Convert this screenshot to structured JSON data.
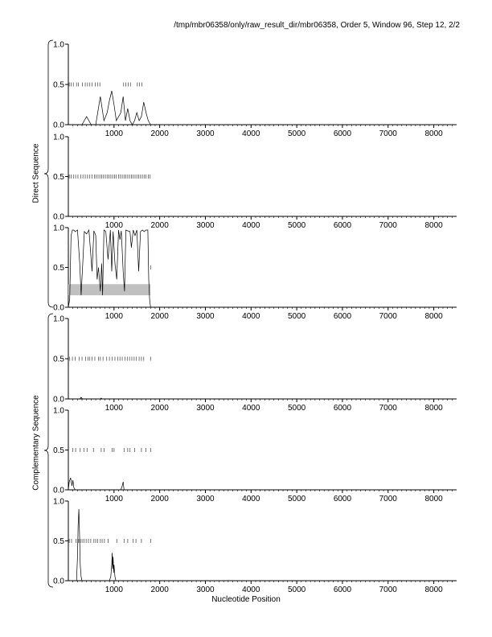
{
  "header": "/tmp/mbr06358/only/raw_result_dir/mbr06358, Order 5, Window 96, Step 12, 2/2",
  "xlabel": "Nucleotide Position",
  "group_labels": {
    "direct": "Direct Sequence",
    "complementary": "Complementary Sequence"
  },
  "x_ticks": [
    "1000",
    "2000",
    "3000",
    "4000",
    "5000",
    "6000",
    "7000",
    "8000"
  ],
  "y_ticks": [
    "0.0",
    "0.5",
    "1.0"
  ],
  "chart_data": [
    {
      "type": "line",
      "panel": 1,
      "group": "Direct Sequence",
      "xlim": [
        0,
        8500
      ],
      "ylim": [
        0,
        1
      ],
      "x": [
        0,
        150,
        300,
        400,
        500,
        600,
        700,
        780,
        850,
        900,
        950,
        1000,
        1050,
        1150,
        1200,
        1250,
        1300,
        1350,
        1400,
        1450,
        1500,
        1550,
        1600,
        1650,
        1700,
        1750,
        1800
      ],
      "y": [
        0,
        0,
        0,
        0.1,
        0,
        0,
        0.35,
        0.05,
        0.15,
        0.3,
        0.42,
        0.25,
        0.05,
        0.15,
        0.35,
        0.05,
        0.2,
        0.05,
        0,
        0.05,
        0.15,
        0.05,
        0.1,
        0.28,
        0.15,
        0.05,
        0
      ],
      "markers_y": 0.5,
      "markers_x": [
        20,
        60,
        110,
        180,
        220,
        310,
        370,
        420,
        470,
        520,
        590,
        640,
        690,
        1210,
        1260,
        1310,
        1360,
        1510,
        1560,
        1610
      ]
    },
    {
      "type": "line",
      "panel": 2,
      "group": "Direct Sequence",
      "xlim": [
        0,
        8500
      ],
      "ylim": [
        0,
        1
      ],
      "x": [
        0,
        1800
      ],
      "y": [
        0,
        0
      ],
      "markers_y": 0.5,
      "markers_x": [
        20,
        60,
        110,
        160,
        210,
        270,
        320,
        370,
        420,
        470,
        520,
        570,
        610,
        650,
        690,
        730,
        770,
        810,
        850,
        890,
        930,
        970,
        1010,
        1050,
        1100,
        1140,
        1180,
        1220,
        1260,
        1300,
        1340,
        1380,
        1420,
        1460,
        1500,
        1540,
        1580,
        1620,
        1660,
        1700,
        1750,
        1790
      ]
    },
    {
      "type": "line",
      "panel": 3,
      "group": "Direct Sequence",
      "xlim": [
        0,
        8500
      ],
      "ylim": [
        0,
        1
      ],
      "x": [
        0,
        30,
        60,
        90,
        120,
        150,
        200,
        250,
        280,
        320,
        350,
        400,
        450,
        480,
        520,
        560,
        600,
        630,
        660,
        700,
        730,
        750,
        780,
        820,
        870,
        920,
        950,
        980,
        1020,
        1060,
        1100,
        1130,
        1160,
        1200,
        1230,
        1260,
        1300,
        1350,
        1380,
        1420,
        1460,
        1500,
        1540,
        1580,
        1620,
        1660,
        1700,
        1740,
        1760,
        1780,
        1800
      ],
      "y": [
        0,
        0.1,
        0.9,
        0.97,
        0.97,
        0.95,
        0.97,
        0.55,
        0.15,
        0.6,
        0.95,
        0.92,
        0.97,
        0.75,
        0.45,
        0.96,
        0.9,
        0.35,
        0.5,
        0.2,
        0.55,
        0.15,
        0.97,
        0.95,
        0.6,
        0.97,
        0.45,
        0.95,
        0.55,
        0.35,
        0.97,
        0.85,
        0.96,
        0.45,
        0.2,
        0.97,
        0.96,
        0.95,
        0.75,
        0.97,
        0.9,
        0.97,
        0.45,
        0.95,
        0.97,
        0.95,
        0.97,
        0.97,
        0.35,
        0.1,
        0
      ],
      "band": {
        "x0": 0,
        "x1": 1800,
        "y0": 0.15,
        "y1": 0.29
      },
      "markers_y": 0.5,
      "markers_x": [
        1800
      ]
    },
    {
      "type": "line",
      "panel": 4,
      "group": "Complementary Sequence",
      "xlim": [
        0,
        8500
      ],
      "ylim": [
        0,
        1
      ],
      "x": [
        0,
        250,
        280,
        310,
        700,
        720,
        740,
        1800
      ],
      "y": [
        0,
        0,
        0.02,
        0,
        0,
        0.01,
        0,
        0
      ],
      "markers_y": 0.5,
      "markers_x": [
        30,
        90,
        150,
        240,
        300,
        380,
        430,
        470,
        520,
        580,
        660,
        700,
        760,
        840,
        900,
        960,
        1020,
        1080,
        1130,
        1180,
        1240,
        1290,
        1340,
        1390,
        1440,
        1490,
        1550,
        1600,
        1650,
        1800
      ]
    },
    {
      "type": "line",
      "panel": 5,
      "group": "Complementary Sequence",
      "xlim": [
        0,
        8500
      ],
      "ylim": [
        0,
        1
      ],
      "x": [
        0,
        20,
        50,
        80,
        100,
        120,
        150,
        1150,
        1180,
        1200,
        1220,
        1800
      ],
      "y": [
        0,
        0.1,
        0.15,
        0.05,
        0.12,
        0.03,
        0,
        0,
        0.05,
        0.1,
        0,
        0
      ],
      "markers_y": 0.5,
      "markers_x": [
        100,
        160,
        260,
        340,
        410,
        550,
        720,
        780,
        960,
        1000,
        1220,
        1300,
        1350,
        1450,
        1600,
        1700,
        1800
      ]
    },
    {
      "type": "line",
      "panel": 6,
      "group": "Complementary Sequence",
      "xlim": [
        0,
        8500
      ],
      "ylim": [
        0,
        1
      ],
      "x": [
        0,
        180,
        200,
        215,
        230,
        245,
        260,
        280,
        300,
        900,
        930,
        950,
        960,
        970,
        980,
        990,
        1000,
        1020,
        1040,
        1800
      ],
      "y": [
        0,
        0,
        0.3,
        0.7,
        0.9,
        0.6,
        0.2,
        0.05,
        0,
        0,
        0.05,
        0.2,
        0.35,
        0.15,
        0.3,
        0.1,
        0.2,
        0.05,
        0,
        0
      ],
      "markers_y": 0.5,
      "markers_x": [
        20,
        70,
        170,
        220,
        260,
        300,
        340,
        390,
        440,
        490,
        560,
        600,
        640,
        700,
        740,
        790,
        870,
        1060,
        1220,
        1300,
        1420,
        1480,
        1600,
        1800
      ]
    }
  ]
}
